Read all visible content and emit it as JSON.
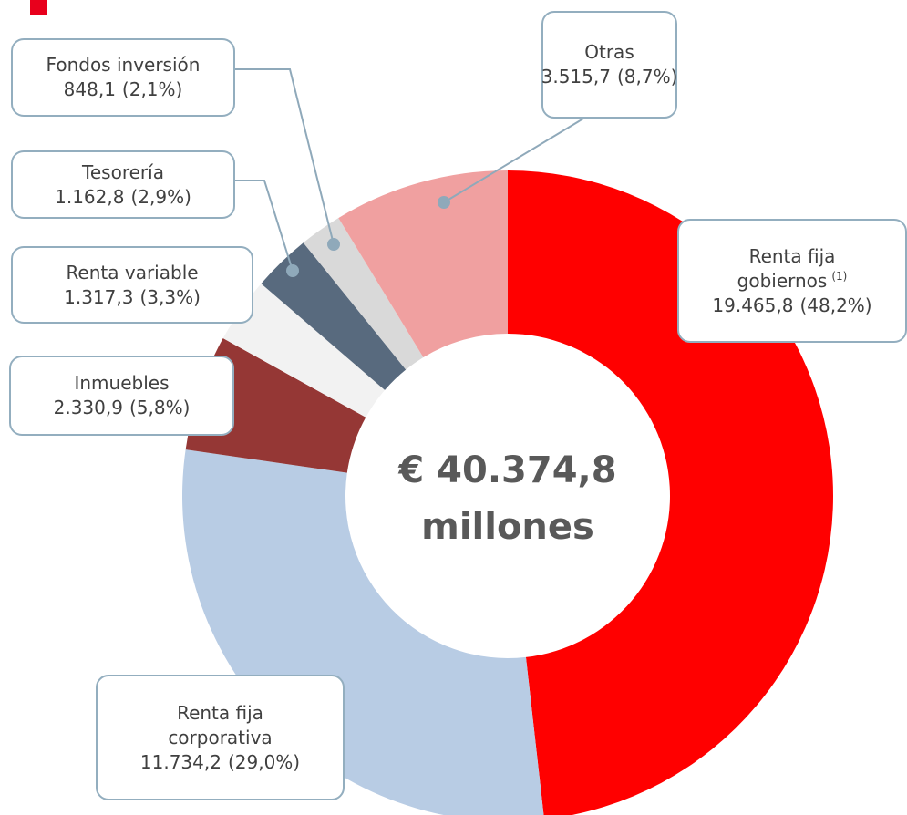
{
  "chart_data": {
    "type": "donut",
    "categories": [
      "Renta fija gobiernos",
      "Renta fija corporativa",
      "Inmuebles",
      "Renta variable",
      "Tesorería",
      "Fondos inversión",
      "Otras"
    ],
    "category_notes": [
      "(1)",
      null,
      null,
      null,
      null,
      null,
      null
    ],
    "values": [
      19465.8,
      11734.2,
      2330.9,
      1317.3,
      1162.8,
      848.1,
      3515.7
    ],
    "value_labels": [
      "19.465,8",
      "11.734,2",
      "2.330,9",
      "1.317,3",
      "1.162,8",
      "848,1",
      "3.515,7"
    ],
    "percent_labels": [
      "(48,2%)",
      "(29,0%)",
      "(5,8%)",
      "(3,3%)",
      "(2,9%)",
      "(2,1%)",
      "(8,7%)"
    ],
    "colors": [
      "#ff0000",
      "#b8cce4",
      "#953735",
      "#f2f2f2",
      "#586a7e",
      "#d9d9d9",
      "#f0a0a0"
    ],
    "center_label": "€ 40.374,8",
    "center_sublabel": "millones"
  }
}
